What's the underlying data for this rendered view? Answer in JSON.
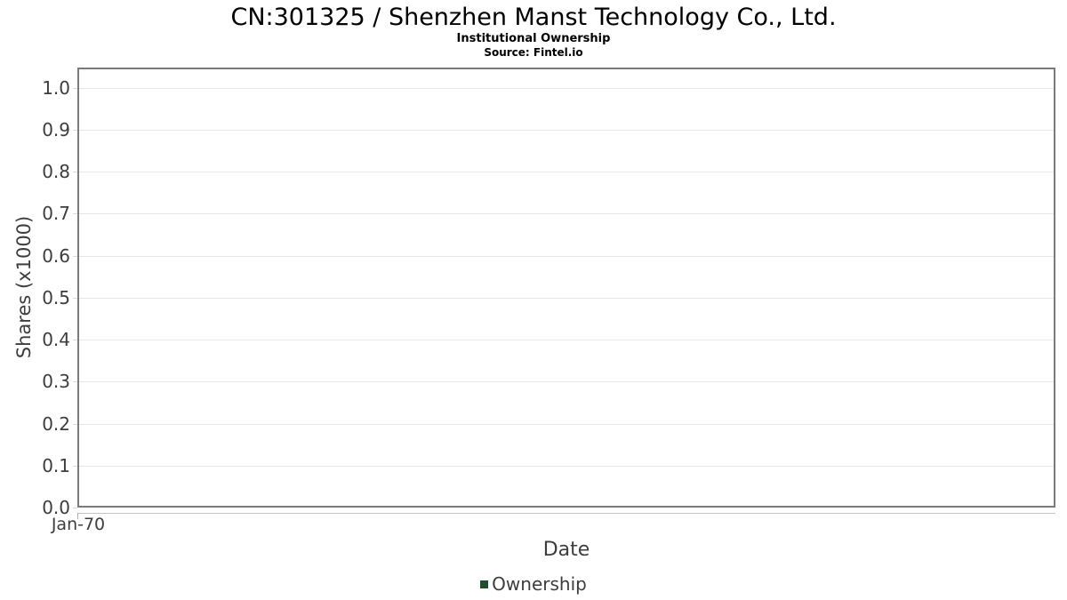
{
  "chart_data": {
    "type": "line",
    "title": "CN:301325 / Shenzhen Manst Technology Co., Ltd.",
    "subtitle": "Institutional Ownership",
    "source": "Source: Fintel.io",
    "xlabel": "Date",
    "ylabel": "Shares (x1000)",
    "xtick_labels": [
      "Jan-70"
    ],
    "ytick_labels": [
      "0.0",
      "0.1",
      "0.2",
      "0.3",
      "0.4",
      "0.5",
      "0.6",
      "0.7",
      "0.8",
      "0.9",
      "1.0"
    ],
    "ytick_values": [
      0.0,
      0.1,
      0.2,
      0.3,
      0.4,
      0.5,
      0.6,
      0.7,
      0.8,
      0.9,
      1.0
    ],
    "ylim": [
      0.0,
      1.05
    ],
    "grid": true,
    "legend_position": "bottom",
    "legend": {
      "entries": [
        {
          "label": "Ownership",
          "color": "#1e4f2d"
        }
      ]
    },
    "series": [
      {
        "name": "Ownership",
        "color": "#1e4f2d",
        "x": [],
        "values": []
      }
    ]
  },
  "colors": {
    "plot_border": "#7a7a7a",
    "gridline": "#e7e7e7",
    "ytick": "#dcdcdc",
    "xaxis_line": "#c4c4c4",
    "axis_text": "#3d3d3d",
    "title_text": "#000000",
    "background": "#ffffff"
  }
}
